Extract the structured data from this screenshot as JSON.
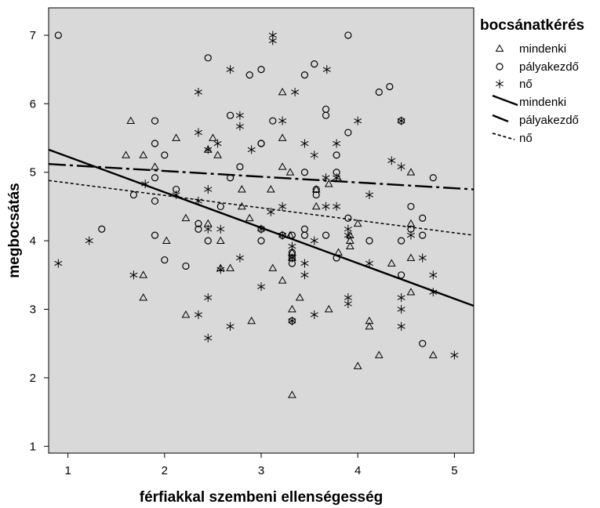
{
  "chart_data": {
    "type": "scatter",
    "title": "",
    "xlabel": "férfiakkal szembeni ellenségesség",
    "ylabel": "megbocsátás",
    "xlim": [
      0.8,
      5.2
    ],
    "ylim": [
      0.9,
      7.4
    ],
    "xticks": [
      "1",
      "2",
      "3",
      "4",
      "5"
    ],
    "yticks": [
      "1",
      "2",
      "3",
      "4",
      "5",
      "6",
      "7"
    ],
    "background": "#d9d9d9",
    "grid": false,
    "legend": {
      "title": "bocsánatkérés",
      "position": "right",
      "items": [
        {
          "label": "mindenki",
          "symbol": "triangle"
        },
        {
          "label": "pályakezdő",
          "symbol": "circle"
        },
        {
          "label": "nő",
          "symbol": "star"
        },
        {
          "label": "mindenki",
          "symbol": "solid-line"
        },
        {
          "label": "pályakezdő",
          "symbol": "dash-line"
        },
        {
          "label": "nő",
          "symbol": "dotted-line"
        }
      ]
    },
    "series": [
      {
        "name": "mindenki",
        "marker": "triangle",
        "points": [
          [
            1.65,
            5.75
          ],
          [
            1.6,
            5.25
          ],
          [
            1.78,
            5.25
          ],
          [
            1.9,
            5.08
          ],
          [
            2.12,
            5.5
          ],
          [
            2.5,
            5.5
          ],
          [
            2.55,
            5.25
          ],
          [
            2.8,
            4.75
          ],
          [
            2.8,
            4.5
          ],
          [
            2.88,
            4.33
          ],
          [
            3.22,
            6.17
          ],
          [
            3.22,
            5.5
          ],
          [
            3.22,
            5.08
          ],
          [
            3.3,
            5.0
          ],
          [
            3.1,
            4.75
          ],
          [
            3.57,
            4.5
          ],
          [
            3.57,
            4.75
          ],
          [
            3.7,
            4.83
          ],
          [
            3.8,
            4.9
          ],
          [
            3.92,
            4.08
          ],
          [
            3.92,
            3.92
          ],
          [
            3.8,
            3.83
          ],
          [
            4.0,
            4.25
          ],
          [
            2.22,
            4.33
          ],
          [
            2.45,
            4.25
          ],
          [
            2.02,
            4.0
          ],
          [
            2.58,
            4.0
          ],
          [
            2.58,
            3.6
          ],
          [
            2.68,
            3.6
          ],
          [
            3.12,
            3.6
          ],
          [
            3.22,
            3.42
          ],
          [
            3.4,
            3.17
          ],
          [
            3.32,
            3.0
          ],
          [
            3.7,
            3.0
          ],
          [
            3.32,
            3.83
          ],
          [
            3.32,
            3.75
          ],
          [
            1.78,
            3.5
          ],
          [
            1.78,
            3.17
          ],
          [
            2.22,
            2.92
          ],
          [
            2.9,
            2.83
          ],
          [
            4.12,
            2.83
          ],
          [
            4.12,
            2.75
          ],
          [
            4.22,
            2.33
          ],
          [
            4.0,
            2.17
          ],
          [
            3.32,
            1.75
          ],
          [
            4.35,
            3.67
          ],
          [
            4.55,
            3.75
          ],
          [
            4.55,
            3.25
          ],
          [
            4.55,
            5.0
          ],
          [
            4.55,
            4.25
          ],
          [
            4.78,
            2.33
          ],
          [
            2.45,
            5.33
          ],
          [
            3.92,
            4.0
          ],
          [
            3.3,
            4.08
          ]
        ]
      },
      {
        "name": "pályakezdő",
        "marker": "circle",
        "points": [
          [
            0.9,
            7.0
          ],
          [
            2.45,
            6.67
          ],
          [
            2.88,
            6.42
          ],
          [
            3.0,
            6.5
          ],
          [
            3.55,
            6.58
          ],
          [
            3.9,
            7.0
          ],
          [
            3.45,
            6.42
          ],
          [
            4.22,
            6.17
          ],
          [
            4.33,
            6.25
          ],
          [
            2.68,
            5.83
          ],
          [
            3.0,
            5.42
          ],
          [
            3.12,
            5.75
          ],
          [
            3.67,
            5.92
          ],
          [
            3.67,
            5.83
          ],
          [
            3.9,
            5.58
          ],
          [
            4.45,
            5.75
          ],
          [
            1.9,
            5.75
          ],
          [
            1.9,
            5.42
          ],
          [
            2.0,
            5.25
          ],
          [
            1.9,
            4.92
          ],
          [
            2.12,
            4.75
          ],
          [
            2.68,
            4.92
          ],
          [
            2.78,
            5.08
          ],
          [
            3.0,
            5.42
          ],
          [
            3.45,
            5.0
          ],
          [
            3.57,
            4.75
          ],
          [
            3.57,
            4.67
          ],
          [
            3.78,
            5.25
          ],
          [
            3.78,
            5.0
          ],
          [
            1.68,
            4.67
          ],
          [
            1.9,
            4.58
          ],
          [
            2.35,
            4.25
          ],
          [
            2.35,
            4.17
          ],
          [
            2.45,
            4.0
          ],
          [
            2.58,
            4.5
          ],
          [
            3.0,
            4.17
          ],
          [
            3.0,
            4.0
          ],
          [
            3.22,
            4.08
          ],
          [
            3.32,
            4.08
          ],
          [
            3.32,
            3.83
          ],
          [
            3.32,
            3.75
          ],
          [
            3.32,
            3.67
          ],
          [
            3.45,
            4.08
          ],
          [
            3.45,
            4.17
          ],
          [
            3.67,
            4.08
          ],
          [
            3.78,
            3.75
          ],
          [
            3.9,
            4.33
          ],
          [
            4.12,
            4.0
          ],
          [
            4.45,
            4.0
          ],
          [
            4.45,
            3.5
          ],
          [
            4.55,
            4.5
          ],
          [
            4.55,
            4.17
          ],
          [
            4.67,
            4.33
          ],
          [
            4.67,
            4.08
          ],
          [
            4.78,
            4.92
          ],
          [
            4.67,
            2.5
          ],
          [
            1.35,
            4.17
          ],
          [
            1.9,
            4.08
          ],
          [
            2.0,
            3.72
          ],
          [
            2.22,
            3.63
          ],
          [
            3.32,
            2.83
          ]
        ]
      },
      {
        "name": "nő",
        "marker": "star",
        "points": [
          [
            0.9,
            3.67
          ],
          [
            1.22,
            4.0
          ],
          [
            1.68,
            3.5
          ],
          [
            1.8,
            4.83
          ],
          [
            2.12,
            4.67
          ],
          [
            2.35,
            6.17
          ],
          [
            2.35,
            5.58
          ],
          [
            2.45,
            5.33
          ],
          [
            2.55,
            5.42
          ],
          [
            2.68,
            6.5
          ],
          [
            2.78,
            5.83
          ],
          [
            2.78,
            5.67
          ],
          [
            2.9,
            5.33
          ],
          [
            3.12,
            7.0
          ],
          [
            3.12,
            6.92
          ],
          [
            3.35,
            6.17
          ],
          [
            3.22,
            5.75
          ],
          [
            3.45,
            5.42
          ],
          [
            3.55,
            5.25
          ],
          [
            3.68,
            6.5
          ],
          [
            3.78,
            5.42
          ],
          [
            4.0,
            5.75
          ],
          [
            3.67,
            4.92
          ],
          [
            3.78,
            4.92
          ],
          [
            4.35,
            5.17
          ],
          [
            4.45,
            5.08
          ],
          [
            4.45,
            5.75
          ],
          [
            2.35,
            4.58
          ],
          [
            2.45,
            4.75
          ],
          [
            2.45,
            4.17
          ],
          [
            2.58,
            4.17
          ],
          [
            3.0,
            4.17
          ],
          [
            3.1,
            4.42
          ],
          [
            3.22,
            4.5
          ],
          [
            3.22,
            4.08
          ],
          [
            3.32,
            3.92
          ],
          [
            3.45,
            3.67
          ],
          [
            3.55,
            4.0
          ],
          [
            3.67,
            4.5
          ],
          [
            3.78,
            4.5
          ],
          [
            3.9,
            4.17
          ],
          [
            3.9,
            4.08
          ],
          [
            4.12,
            4.67
          ],
          [
            2.58,
            3.58
          ],
          [
            2.78,
            3.75
          ],
          [
            3.0,
            3.33
          ],
          [
            3.32,
            3.75
          ],
          [
            3.45,
            3.5
          ],
          [
            3.55,
            2.92
          ],
          [
            3.9,
            3.17
          ],
          [
            3.9,
            3.08
          ],
          [
            4.12,
            3.67
          ],
          [
            4.45,
            3.17
          ],
          [
            4.45,
            3.0
          ],
          [
            4.45,
            2.75
          ],
          [
            4.55,
            4.08
          ],
          [
            4.67,
            3.75
          ],
          [
            4.78,
            3.5
          ],
          [
            4.78,
            3.25
          ],
          [
            2.45,
            3.17
          ],
          [
            2.35,
            2.92
          ],
          [
            2.45,
            2.58
          ],
          [
            2.68,
            2.75
          ],
          [
            5.0,
            2.33
          ],
          [
            3.32,
            2.83
          ]
        ]
      }
    ],
    "fit_lines": [
      {
        "name": "mindenki",
        "style": "solid",
        "x": [
          0.8,
          5.2
        ],
        "y": [
          5.33,
          3.05
        ]
      },
      {
        "name": "pályakezdő",
        "style": "dash",
        "x": [
          0.8,
          5.2
        ],
        "y": [
          5.12,
          4.75
        ]
      },
      {
        "name": "nő",
        "style": "dotted",
        "x": [
          0.8,
          5.2
        ],
        "y": [
          4.88,
          4.08
        ]
      }
    ]
  }
}
